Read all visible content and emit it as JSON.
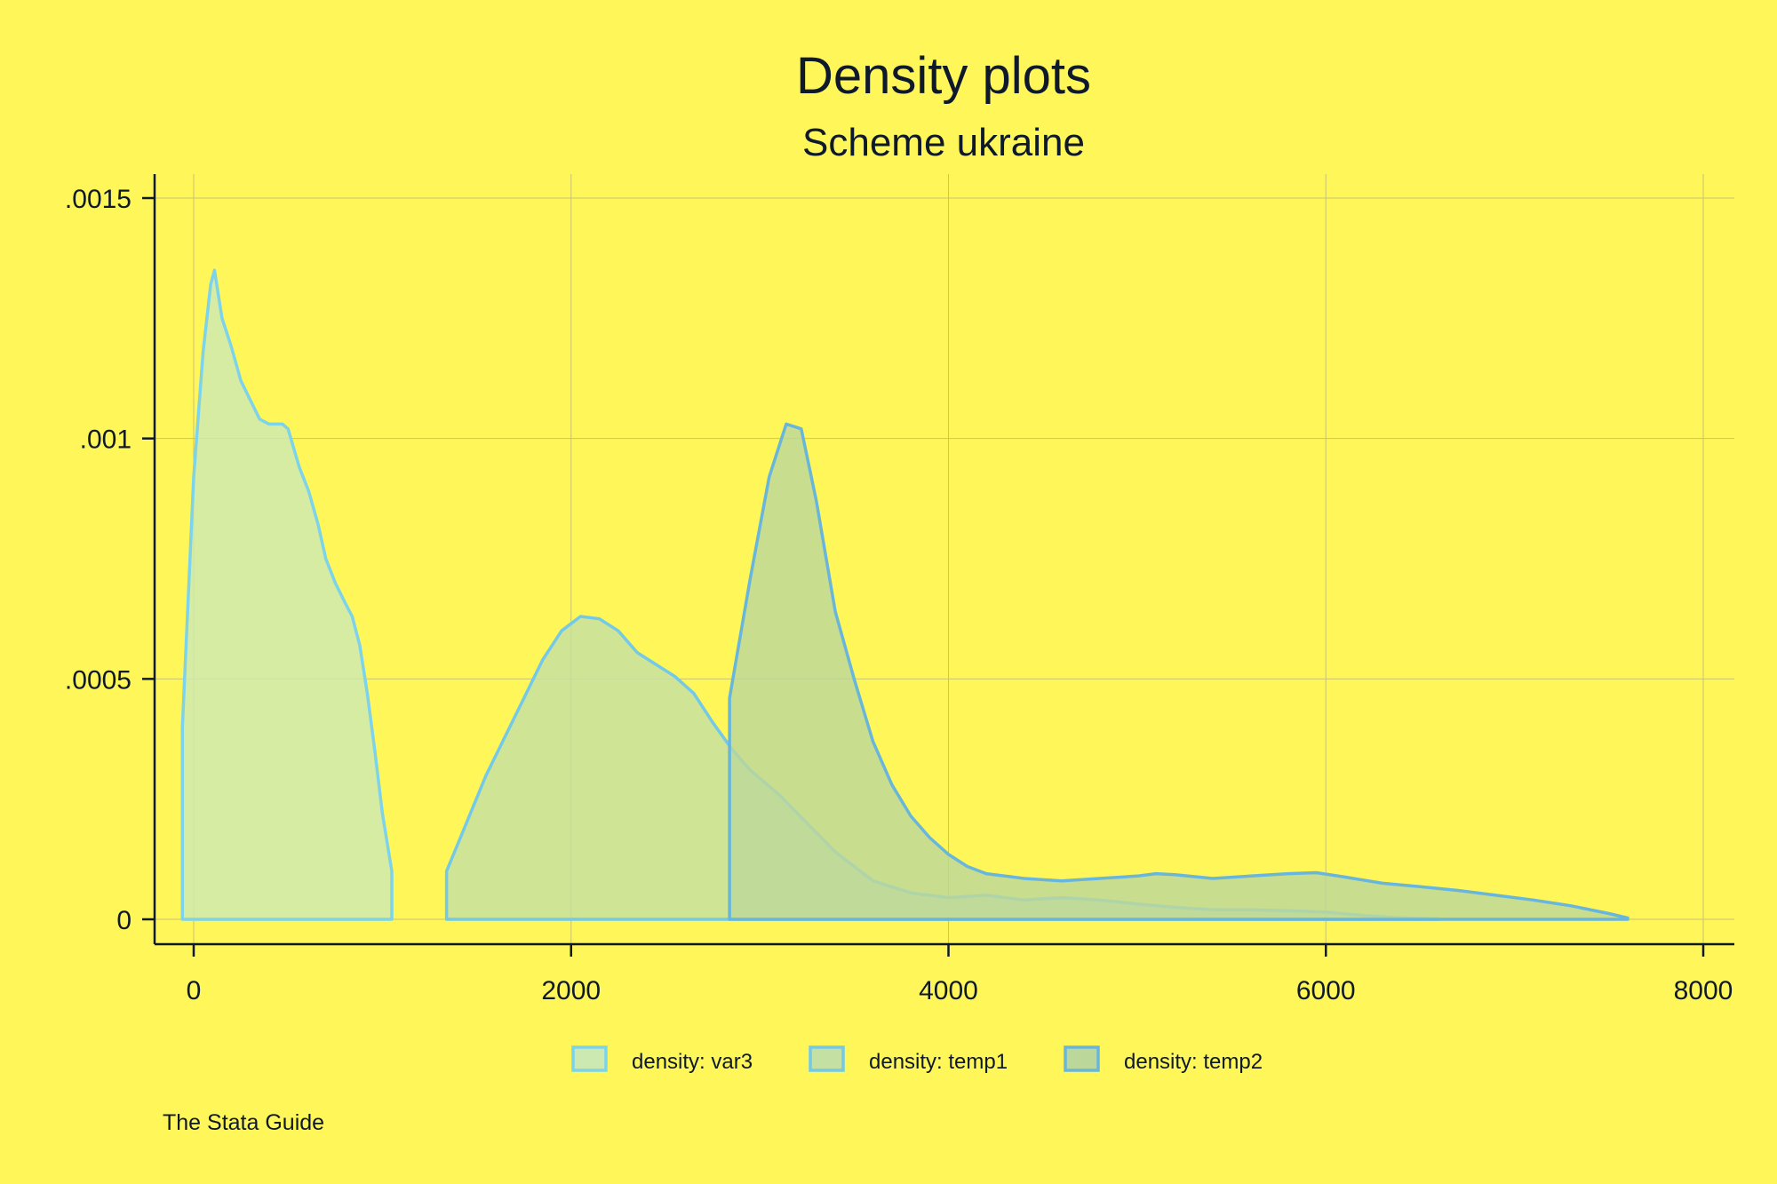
{
  "chart_data": {
    "type": "area",
    "title": "Density plots",
    "subtitle": "Scheme ukraine",
    "note": "The Stata Guide",
    "xlabel": "",
    "ylabel": "",
    "xlim": [
      -100,
      8100
    ],
    "ylim": [
      0,
      0.00155
    ],
    "x_ticks": [
      0,
      2000,
      4000,
      6000,
      8000
    ],
    "x_tick_labels": [
      "0",
      "2000",
      "4000",
      "6000",
      "8000"
    ],
    "y_ticks": [
      0,
      0.0005,
      0.001,
      0.0015
    ],
    "y_tick_labels": [
      "0",
      ".0005",
      ".001",
      ".0015"
    ],
    "grid": true,
    "legend_position": "bottom",
    "colors": {
      "background": "#fff65a",
      "grid": "#c8c36e",
      "axis": "#0e1a2b"
    },
    "series": [
      {
        "name": "density: var3",
        "fill": "#cde9b2",
        "stroke": "#7dd3ea",
        "points": [
          [
            -60,
            0.0004
          ],
          [
            0,
            0.00092
          ],
          [
            50,
            0.00118
          ],
          [
            90,
            0.00132
          ],
          [
            110,
            0.00135
          ],
          [
            150,
            0.00125
          ],
          [
            200,
            0.00119
          ],
          [
            250,
            0.00112
          ],
          [
            300,
            0.00108
          ],
          [
            350,
            0.00104
          ],
          [
            400,
            0.00103
          ],
          [
            470,
            0.00103
          ],
          [
            500,
            0.00102
          ],
          [
            560,
            0.00094
          ],
          [
            610,
            0.00089
          ],
          [
            660,
            0.00082
          ],
          [
            700,
            0.00075
          ],
          [
            750,
            0.0007
          ],
          [
            800,
            0.00066
          ],
          [
            840,
            0.00063
          ],
          [
            880,
            0.00057
          ],
          [
            920,
            0.00047
          ],
          [
            960,
            0.00035
          ],
          [
            1000,
            0.00022
          ],
          [
            1050,
            0.0001
          ]
        ]
      },
      {
        "name": "density: temp1",
        "fill": "#c4e0a2",
        "stroke": "#74c9e8",
        "points": [
          [
            1340,
            0.0001
          ],
          [
            1550,
            0.0003
          ],
          [
            1750,
            0.00046
          ],
          [
            1850,
            0.00054
          ],
          [
            1950,
            0.0006
          ],
          [
            2050,
            0.00063
          ],
          [
            2150,
            0.000625
          ],
          [
            2250,
            0.0006
          ],
          [
            2350,
            0.000555
          ],
          [
            2450,
            0.00053
          ],
          [
            2550,
            0.000505
          ],
          [
            2650,
            0.00047
          ],
          [
            2750,
            0.00041
          ],
          [
            2850,
            0.000355
          ],
          [
            2950,
            0.00031
          ],
          [
            3100,
            0.00026
          ],
          [
            3250,
            0.0002
          ],
          [
            3400,
            0.00014
          ],
          [
            3600,
            8e-05
          ],
          [
            3800,
            5.5e-05
          ],
          [
            4000,
            4.5e-05
          ],
          [
            4200,
            5e-05
          ],
          [
            4400,
            4e-05
          ],
          [
            4600,
            4.5e-05
          ],
          [
            4800,
            4e-05
          ],
          [
            5000,
            3.2e-05
          ],
          [
            5200,
            2.5e-05
          ],
          [
            5400,
            2e-05
          ],
          [
            5600,
            2e-05
          ],
          [
            5800,
            1.8e-05
          ],
          [
            6000,
            1.5e-05
          ],
          [
            6200,
            8e-06
          ],
          [
            6400,
            3e-06
          ],
          [
            6600,
            1e-06
          ]
        ]
      },
      {
        "name": "density: temp2",
        "fill": "#bcd79a",
        "stroke": "#69b6dc",
        "points": [
          [
            2840,
            0.00046
          ],
          [
            2950,
            0.00071
          ],
          [
            3050,
            0.00092
          ],
          [
            3140,
            0.00103
          ],
          [
            3220,
            0.00102
          ],
          [
            3300,
            0.00087
          ],
          [
            3400,
            0.00064
          ],
          [
            3500,
            0.0005
          ],
          [
            3600,
            0.00037
          ],
          [
            3700,
            0.00028
          ],
          [
            3800,
            0.000215
          ],
          [
            3900,
            0.00017
          ],
          [
            4000,
            0.000135
          ],
          [
            4100,
            0.00011
          ],
          [
            4200,
            9.5e-05
          ],
          [
            4400,
            8.5e-05
          ],
          [
            4600,
            8e-05
          ],
          [
            4800,
            8.5e-05
          ],
          [
            5000,
            9e-05
          ],
          [
            5100,
            9.5e-05
          ],
          [
            5200,
            9.3e-05
          ],
          [
            5400,
            8.5e-05
          ],
          [
            5600,
            9e-05
          ],
          [
            5800,
            9.5e-05
          ],
          [
            5950,
            9.7e-05
          ],
          [
            6100,
            8.8e-05
          ],
          [
            6300,
            7.5e-05
          ],
          [
            6500,
            6.8e-05
          ],
          [
            6700,
            6e-05
          ],
          [
            6900,
            5e-05
          ],
          [
            7100,
            4e-05
          ],
          [
            7300,
            2.8e-05
          ],
          [
            7500,
            1.2e-05
          ],
          [
            7600,
            3e-06
          ]
        ]
      }
    ]
  }
}
